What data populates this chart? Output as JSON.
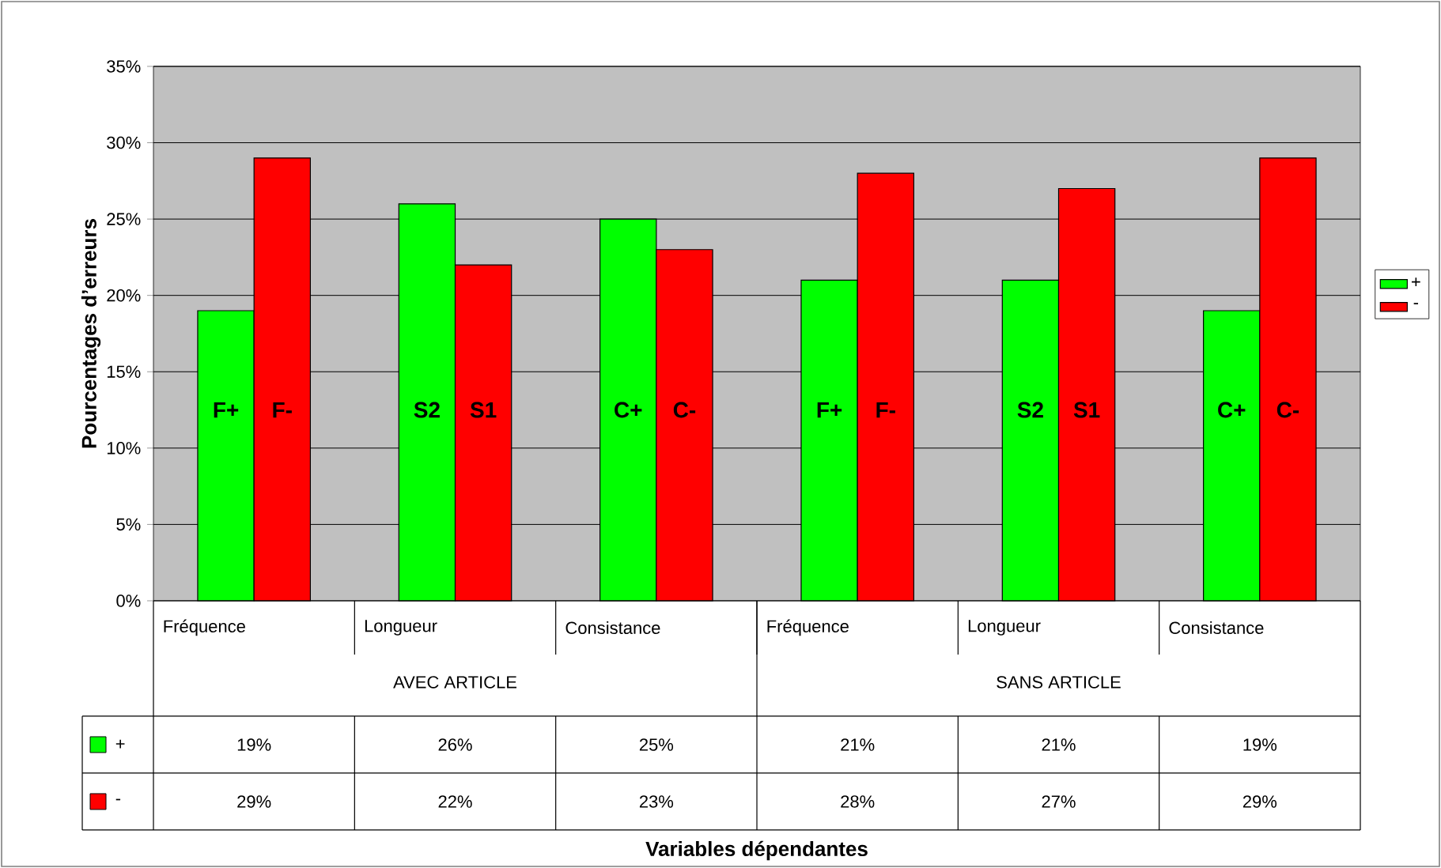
{
  "chart_data": {
    "type": "bar",
    "ylabel": "Pourcentages d’erreurs",
    "categories": [
      "Fréquence",
      "Longueur",
      "Consistance",
      "Fréquence",
      "Longueur",
      "Consistance"
    ],
    "series": [
      {
        "name": "+",
        "color": "#00ff00",
        "values": [
          19,
          26,
          25,
          21,
          21,
          19
        ],
        "value_labels": [
          "19%",
          "26%",
          "25%",
          "21%",
          "21%",
          "19%"
        ]
      },
      {
        "name": "-",
        "color": "#ff0000",
        "values": [
          29,
          22,
          23,
          28,
          27,
          29
        ],
        "value_labels": [
          "29%",
          "22%",
          "23%",
          "28%",
          "27%",
          "29%"
        ]
      }
    ],
    "ylim": [
      0,
      35
    ],
    "yticks": [
      {
        "value": 0,
        "label": "0%"
      },
      {
        "value": 5,
        "label": "5%"
      },
      {
        "value": 10,
        "label": "10%"
      },
      {
        "value": 15,
        "label": "15%"
      },
      {
        "value": 20,
        "label": "20%"
      },
      {
        "value": 25,
        "label": "25%"
      },
      {
        "value": 30,
        "label": "30%"
      },
      {
        "value": 35,
        "label": "35%"
      }
    ],
    "grid": "y",
    "legend": "right",
    "annotations": [
      "AVEC ARTICLE",
      "SANS ARTICLE",
      "F+",
      "F-",
      "S2",
      "S1",
      "C+",
      "C-",
      "F+",
      "F-",
      "S2",
      "S1",
      "C+",
      "C-",
      "Variables dépendantes"
    ]
  }
}
